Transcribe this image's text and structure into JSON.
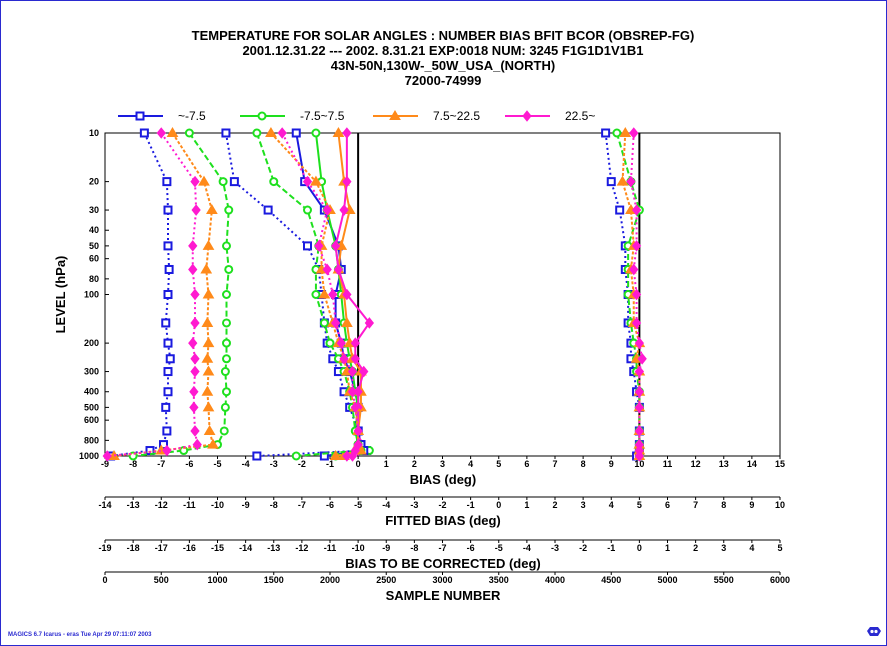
{
  "footer": "MAGICS 6.7 Icarus - eras Tue Apr 29 07:11:07 2003",
  "icons": {
    "logo": "magics-logo-icon"
  },
  "colors": {
    "s1": "#1a1adf",
    "s2": "#1ee01e",
    "s3": "#ff8a1a",
    "s4": "#ff1ad0",
    "frame": "#2a2ad0"
  },
  "chart_data": {
    "type": "line",
    "title_lines": [
      "TEMPERATURE FOR SOLAR ANGLES : NUMBER BIAS BFIT BCOR  (OBSREP-FG)",
      "2001.12.31.22 --- 2002. 8.31.21   EXP:0018    NUM:  3245   F1G1D1V1B1",
      "43N-50N,130W-_50W_USA_(NORTH)",
      "72000-74999"
    ],
    "ylabel": "LEVEL (hPa)",
    "y_scale": "log",
    "ylim": [
      10,
      1000
    ],
    "y_ticks": [
      10,
      20,
      30,
      40,
      50,
      60,
      80,
      100,
      200,
      300,
      400,
      500,
      600,
      800,
      1000
    ],
    "grid": false,
    "legend_position": "top",
    "series_names": [
      "~-7.5",
      "-7.5~7.5",
      "7.5~22.5",
      "22.5~"
    ],
    "levels": [
      10,
      20,
      30,
      50,
      70,
      100,
      150,
      200,
      250,
      300,
      400,
      500,
      700,
      850,
      925,
      1000
    ],
    "x_axes": [
      {
        "label": "BIAS (deg)",
        "min": -9,
        "max": 15,
        "ticks": [
          -9,
          -8,
          -7,
          -6,
          -5,
          -4,
          -3,
          -2,
          -1,
          0,
          1,
          2,
          3,
          4,
          5,
          6,
          7,
          8,
          9,
          10,
          11,
          12,
          13,
          14,
          15
        ]
      },
      {
        "label": "FITTED BIAS (deg)",
        "min": -14,
        "max": 10,
        "ticks": [
          -14,
          -13,
          -12,
          -11,
          -10,
          -9,
          -8,
          -7,
          -6,
          -5,
          -4,
          -3,
          -2,
          -1,
          0,
          1,
          2,
          3,
          4,
          5,
          6,
          7,
          8,
          9,
          10
        ]
      },
      {
        "label": "BIAS TO BE CORRECTED (deg)",
        "min": -19,
        "max": 5,
        "ticks": [
          -19,
          -18,
          -17,
          -16,
          -15,
          -14,
          -13,
          -12,
          -11,
          -10,
          -9,
          -8,
          -7,
          -6,
          -5,
          -4,
          -3,
          -2,
          -1,
          0,
          1,
          2,
          3,
          4,
          5
        ]
      },
      {
        "label": "SAMPLE NUMBER",
        "min": 0,
        "max": 6000,
        "ticks": [
          0,
          500,
          1000,
          1500,
          2000,
          2500,
          3000,
          3500,
          4000,
          4500,
          5000,
          5500,
          6000
        ]
      }
    ],
    "panels": [
      {
        "axis_index": 3,
        "zero_at": 0,
        "series": [
          {
            "values": [
              350,
              550,
              560,
              560,
              570,
              560,
              540,
              560,
              580,
              560,
              560,
              540,
              550,
              520,
              400,
              50
            ]
          },
          {
            "values": [
              750,
              1050,
              1100,
              1080,
              1100,
              1080,
              1080,
              1080,
              1080,
              1070,
              1080,
              1070,
              1060,
              1000,
              700,
              250
            ]
          },
          {
            "values": [
              600,
              880,
              950,
              920,
              900,
              920,
              910,
              920,
              910,
              920,
              910,
              920,
              930,
              960,
              500,
              80
            ]
          },
          {
            "values": [
              500,
              800,
              810,
              780,
              780,
              800,
              800,
              780,
              800,
              800,
              790,
              790,
              800,
              820,
              550,
              20
            ]
          }
        ]
      },
      {
        "axis_index": 0,
        "zero_at": 0,
        "series": [
          {
            "values": [
              -2.2,
              -1.9,
              -1.2,
              -0.7,
              -0.6,
              -0.8,
              -0.8,
              -0.6,
              -0.5,
              -0.3,
              -0.1,
              0.0,
              0.0,
              0.1,
              0.3,
              -1.2
            ]
          },
          {
            "values": [
              -1.5,
              -1.3,
              -1.1,
              -0.8,
              -0.7,
              -0.6,
              -0.5,
              -0.4,
              -0.3,
              -0.2,
              -0.1,
              0.0,
              -0.1,
              0.0,
              0.4,
              -0.8
            ]
          },
          {
            "values": [
              -0.7,
              -0.5,
              -0.3,
              -0.6,
              -0.7,
              -0.5,
              -0.4,
              -0.3,
              -0.2,
              0.1,
              0.1,
              0.1,
              0.0,
              0.0,
              -0.1,
              -0.5
            ]
          },
          {
            "values": [
              -0.4,
              -0.4,
              -0.5,
              -0.8,
              -0.7,
              -0.4,
              0.4,
              -0.1,
              -0.1,
              0.2,
              0.0,
              0.0,
              0.0,
              0.1,
              0.0,
              -0.2
            ]
          }
        ]
      },
      {
        "axis_index": 1,
        "zero_at": -5,
        "series": [
          {
            "values": [
              -9.7,
              -9.4,
              -8.2,
              -6.8,
              -6.4,
              -6.3,
              -6.2,
              -6.1,
              -5.9,
              -5.7,
              -5.5,
              -5.3,
              -5.0,
              -4.9,
              -4.8,
              -8.6
            ]
          },
          {
            "values": [
              -8.6,
              -8.0,
              -6.8,
              -6.4,
              -6.5,
              -6.5,
              -6.2,
              -6.0,
              -5.7,
              -5.5,
              -5.3,
              -5.2,
              -5.1,
              -5.0,
              -4.9,
              -7.2
            ]
          },
          {
            "values": [
              -8.1,
              -6.5,
              -6.0,
              -6.3,
              -6.3,
              -6.2,
              -5.9,
              -5.7,
              -5.5,
              -5.4,
              -5.3,
              -5.1,
              -5.0,
              -5.0,
              -4.9,
              -5.8
            ]
          },
          {
            "values": [
              -7.7,
              -6.8,
              -6.1,
              -6.4,
              -6.1,
              -5.9,
              -5.8,
              -5.6,
              -5.5,
              -5.2,
              -5.2,
              -5.1,
              -5.0,
              -5.0,
              -5.1,
              -5.4
            ]
          }
        ]
      },
      {
        "axis_index": 2,
        "zero_at": 0,
        "series": [
          {
            "values": [
              -1.2,
              -1.0,
              -0.7,
              -0.5,
              -0.5,
              -0.4,
              -0.4,
              -0.3,
              -0.3,
              -0.2,
              -0.1,
              0.0,
              0.0,
              0.0,
              0.0,
              -0.1
            ]
          },
          {
            "values": [
              -0.8,
              -0.3,
              0.0,
              -0.4,
              -0.4,
              -0.4,
              -0.3,
              -0.2,
              -0.1,
              -0.1,
              0.0,
              0.0,
              0.0,
              0.0,
              0.0,
              0.0
            ]
          },
          {
            "values": [
              -0.5,
              -0.6,
              -0.3,
              -0.2,
              -0.3,
              -0.2,
              -0.2,
              0.0,
              -0.1,
              0.0,
              0.0,
              0.0,
              0.0,
              0.0,
              0.0,
              0.0
            ]
          },
          {
            "values": [
              -0.2,
              -0.3,
              -0.1,
              -0.1,
              -0.2,
              -0.1,
              -0.1,
              0.0,
              0.1,
              0.0,
              0.0,
              0.0,
              0.0,
              0.0,
              0.0,
              0.0
            ]
          }
        ]
      }
    ]
  }
}
